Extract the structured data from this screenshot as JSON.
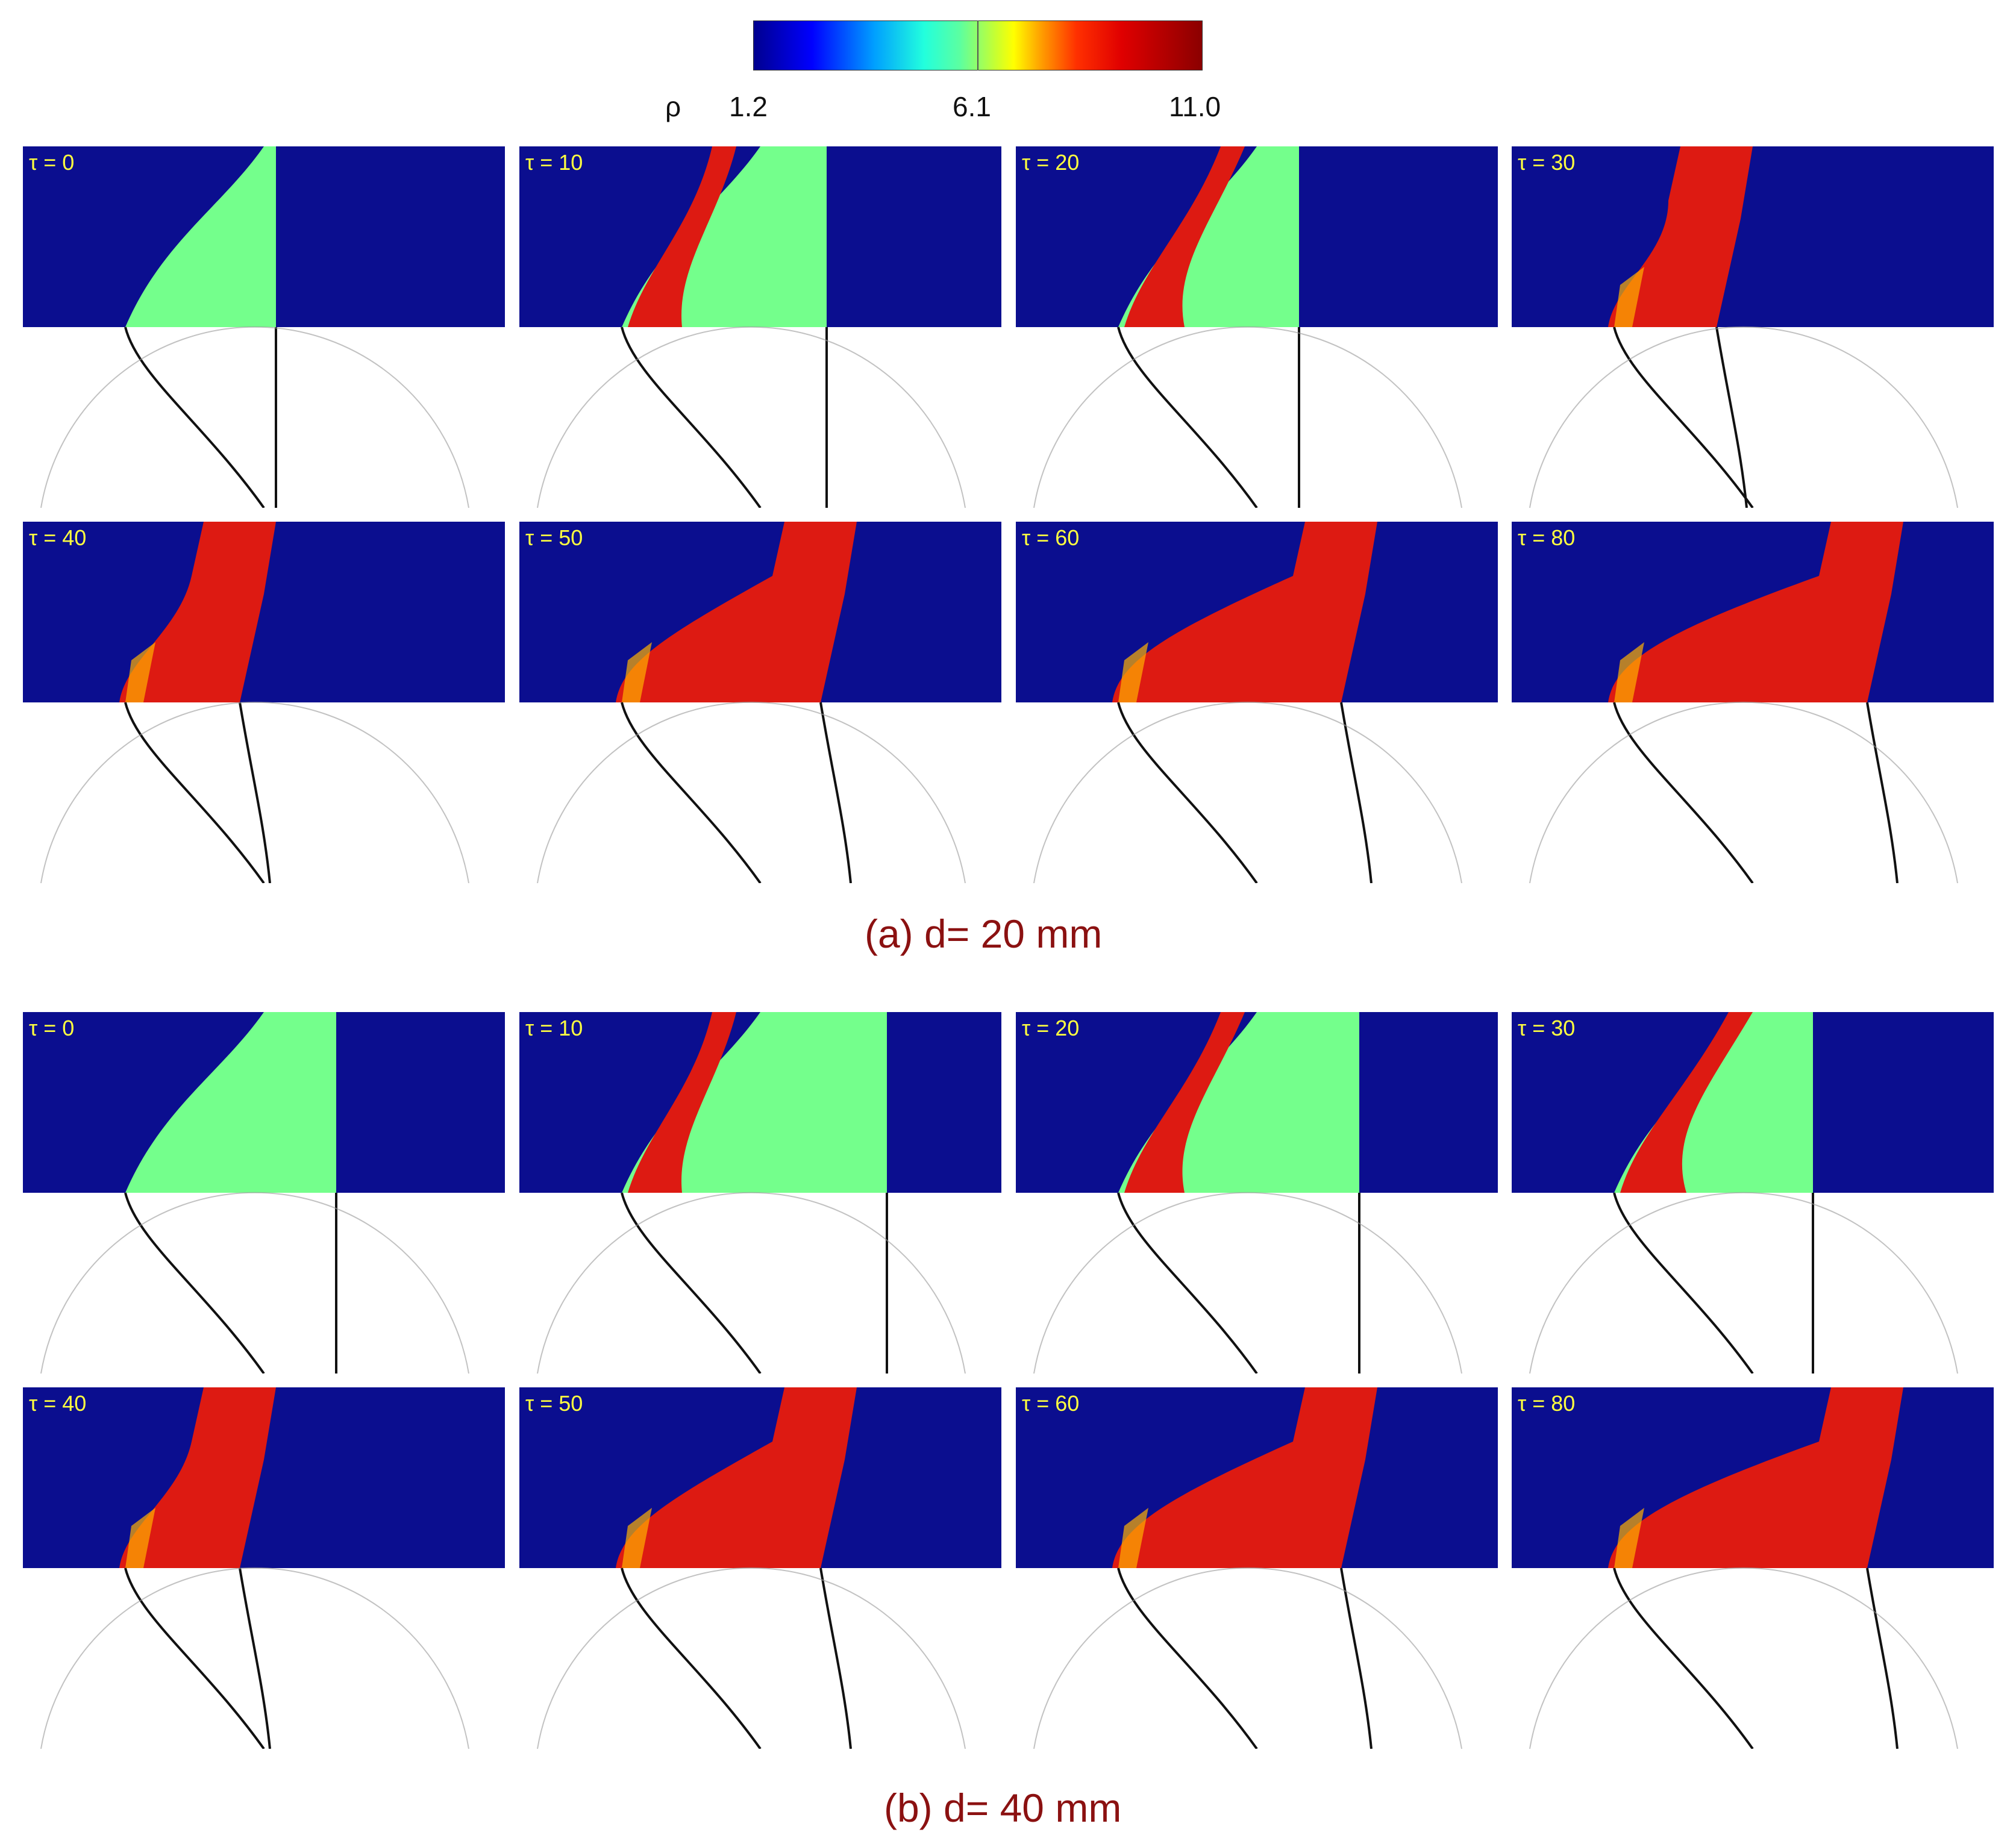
{
  "colorbar": {
    "symbol": "ρ",
    "min_label": "1.2",
    "mid_label": "6.1",
    "max_label": "11.0",
    "colormap": "jet"
  },
  "sections": [
    {
      "caption": "(a) d= 20 mm",
      "panels": [
        "τ = 0",
        "τ = 10",
        "τ = 20",
        "τ = 30",
        "τ = 40",
        "τ = 50",
        "τ = 60",
        "τ = 80"
      ]
    },
    {
      "caption": "(b) d= 40 mm",
      "panels": [
        "τ = 0",
        "τ = 10",
        "τ = 20",
        "τ = 30",
        "τ = 40",
        "τ = 50",
        "τ = 60",
        "τ = 80"
      ]
    }
  ],
  "colors": {
    "background_gas": "#0b0e8f",
    "heavy_gas": "#74ff8c",
    "shocked_gas": "#dd1a12",
    "caption": "#8b1111",
    "panel_label": "#ffff40"
  }
}
